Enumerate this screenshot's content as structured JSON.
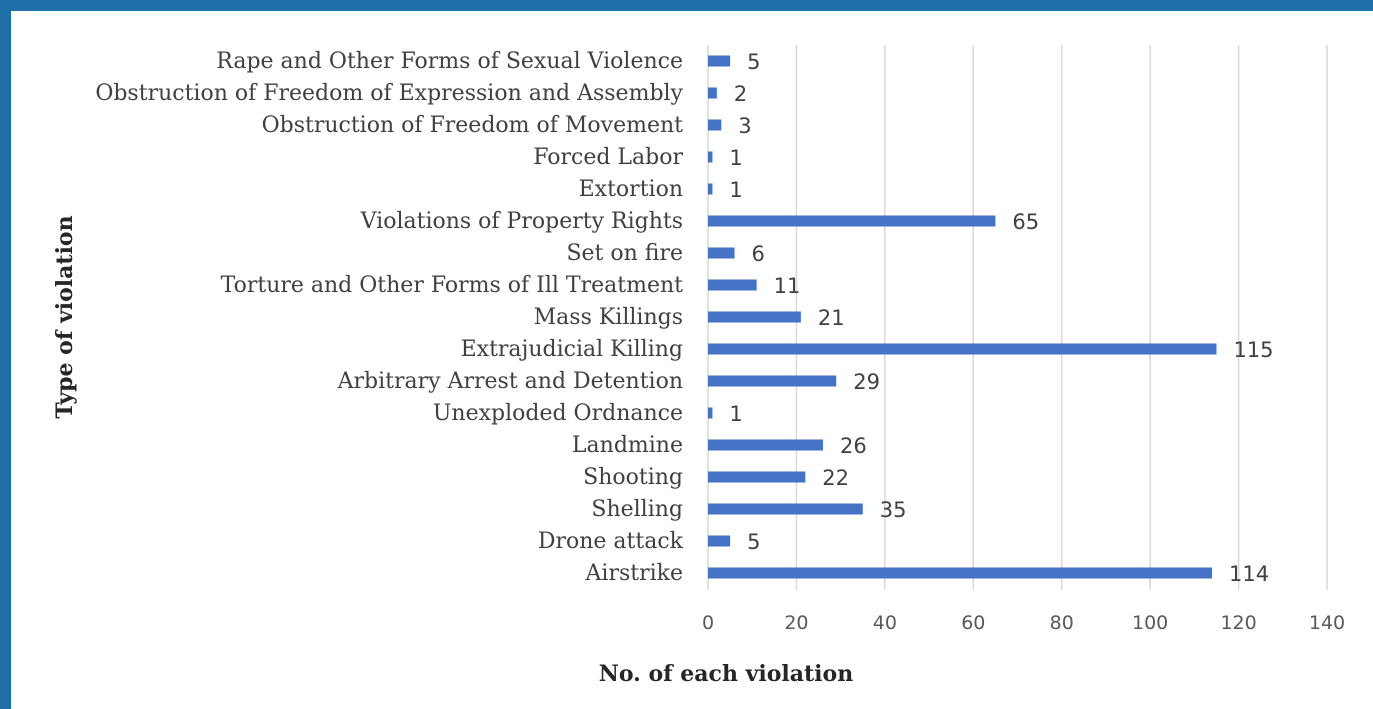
{
  "chart_data": {
    "type": "bar",
    "orientation": "horizontal",
    "xlabel": "No. of each violation",
    "ylabel": "Type of violation",
    "xlim": [
      0,
      140
    ],
    "xticks": [
      0,
      20,
      40,
      60,
      80,
      100,
      120,
      140
    ],
    "grid": true,
    "data_labels": true,
    "bar_color": "#4472c4",
    "frame_color": "#1e6ea8",
    "categories": [
      "Rape and Other Forms of Sexual Violence",
      "Obstruction of Freedom of Expression and Assembly",
      "Obstruction of Freedom of Movement",
      "Forced Labor",
      "Extortion",
      "Violations of Property Rights",
      "Set on fire",
      "Torture and Other Forms of Ill Treatment",
      "Mass Killings",
      "Extrajudicial Killing",
      "Arbitrary Arrest and Detention",
      "Unexploded Ordnance",
      "Landmine",
      "Shooting",
      "Shelling",
      "Drone attack",
      "Airstrike"
    ],
    "values": [
      5,
      2,
      3,
      1,
      1,
      65,
      6,
      11,
      21,
      115,
      29,
      1,
      26,
      22,
      35,
      5,
      114
    ]
  }
}
